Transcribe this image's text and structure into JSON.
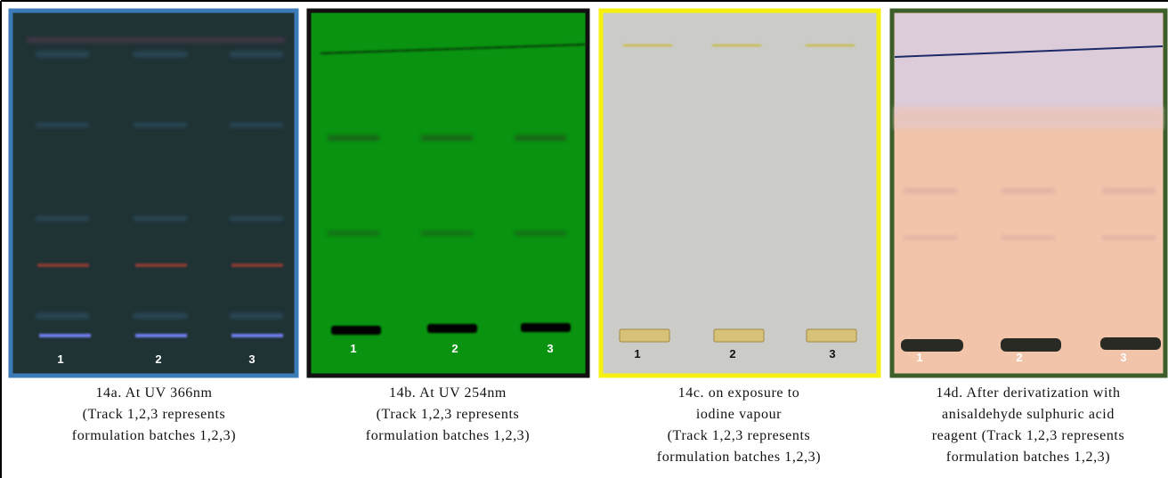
{
  "panels": [
    {
      "tracks": [
        "1",
        "2",
        "3"
      ],
      "caption": [
        "14a. At UV 366nm",
        "(Track 1,2,3 represents",
        "formulation batches 1,2,3)"
      ]
    },
    {
      "tracks": [
        "1",
        "2",
        "3"
      ],
      "caption": [
        "14b. At UV 254nm",
        "(Track 1,2,3 represents",
        "formulation batches 1,2,3)"
      ]
    },
    {
      "tracks": [
        "1",
        "2",
        "3"
      ],
      "caption": [
        "14c. on exposure to",
        "iodine vapour",
        "(Track 1,2,3 represents",
        "formulation batches 1,2,3)"
      ]
    },
    {
      "tracks": [
        "1",
        "2",
        "3"
      ],
      "caption": [
        "14d. After derivatization with",
        "anisaldehyde sulphuric acid",
        "reagent (Track 1,2,3 represents",
        "formulation batches 1,2,3)"
      ]
    }
  ]
}
